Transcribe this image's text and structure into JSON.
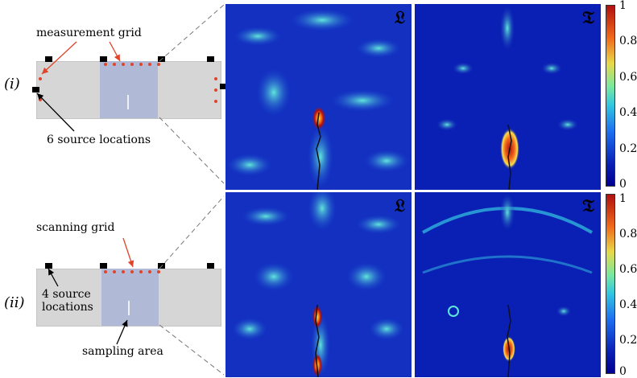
{
  "row1": {
    "roman": "(i)",
    "annotations": {
      "grid": "measurement grid",
      "sources": "6 source locations"
    },
    "panel_l_label": "𝔏",
    "panel_t_label": "𝔗"
  },
  "row2": {
    "roman": "(ii)",
    "annotations": {
      "grid": "scanning grid",
      "sources_line1": "4 source",
      "sources_line2": "locations",
      "sampling": "sampling area"
    },
    "panel_l_label": "𝔏",
    "panel_t_label": "𝔗"
  },
  "colorbar1_ticks": [
    "1",
    "0.8",
    "0.6",
    "0.4",
    "0.2",
    "0"
  ],
  "colorbar2_ticks": [
    "1",
    "0.8",
    "0.6",
    "0.4",
    "0.2",
    "0"
  ],
  "colors": {
    "low": "#0a1fb4",
    "mid": "#33c8e0",
    "high": "#e8d84a",
    "peak": "#b01010",
    "specimen": "#d6d6d6",
    "sampling_area": "#b0b9d6",
    "grid_points": "#e0442a",
    "arrow": "#e0442a"
  }
}
